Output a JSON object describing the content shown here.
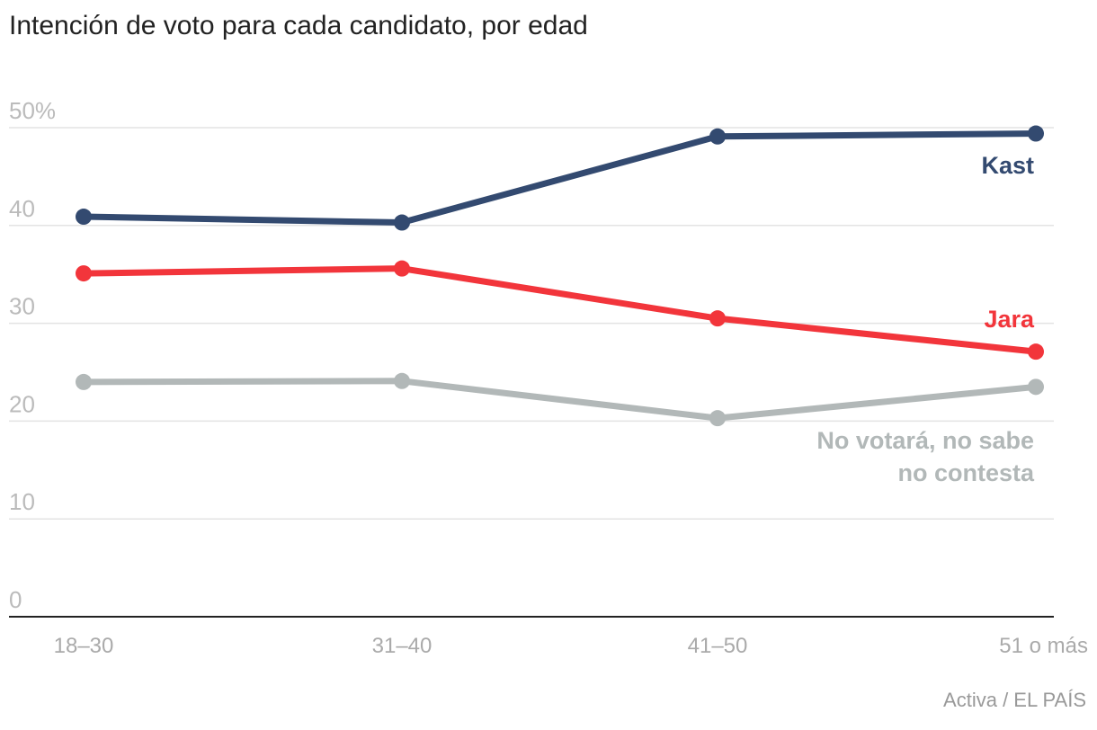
{
  "chart_data": {
    "type": "line",
    "title": "Intención de voto para cada candidato, por edad",
    "source": "Activa / EL PAÍS",
    "categories": [
      "18–30",
      "31–40",
      "41–50",
      "51 o más"
    ],
    "yticks": [
      "50%",
      "40",
      "30",
      "20",
      "10",
      "0"
    ],
    "ytick_values": [
      50,
      40,
      30,
      20,
      10,
      0
    ],
    "ylim": [
      0,
      50
    ],
    "series": [
      {
        "name": "Kast",
        "label_lines": [
          "Kast"
        ],
        "color": "#334a70",
        "values": [
          40.9,
          40.3,
          49.1,
          49.4
        ]
      },
      {
        "name": "Jara",
        "label_lines": [
          "Jara"
        ],
        "color": "#f2353b",
        "values": [
          35.1,
          35.6,
          30.5,
          27.1
        ]
      },
      {
        "name": "No votará, no sabe no contesta",
        "label_lines": [
          "No votará, no sabe",
          "no contesta"
        ],
        "color": "#b2b8b8",
        "values": [
          24.0,
          24.1,
          20.3,
          23.5
        ]
      }
    ]
  }
}
